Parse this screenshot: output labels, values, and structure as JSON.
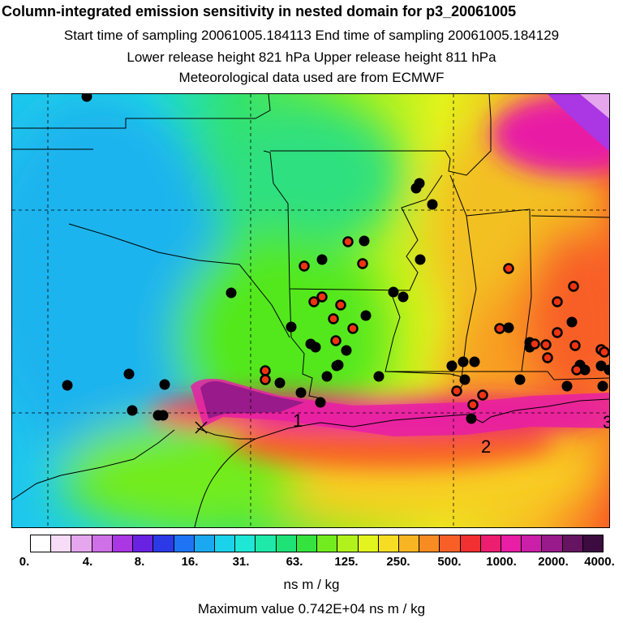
{
  "header": {
    "title": "Column-integrated emission sensitivity in nested domain for p3_20061005",
    "sampling_line": "Start time of sampling 20061005.184113     End time of sampling 20061005.184129",
    "release_line": "Lower release height  821 hPa      Upper release height  811 hPa",
    "met_line": "Meteorological data used are from ECMWF"
  },
  "map": {
    "point_labels": [
      "1",
      "2",
      "3"
    ]
  },
  "colorbar": {
    "ticks": [
      "0.",
      "4.",
      "8.",
      "16.",
      "31.",
      "63.",
      "125.",
      "250.",
      "500.",
      "1000.",
      "2000.",
      "4000."
    ],
    "colors": [
      "#ffffff",
      "#f6dcf6",
      "#e6a6ee",
      "#cf70e8",
      "#aa36e4",
      "#6a22e2",
      "#2b3ae6",
      "#1e74f4",
      "#1aa9f0",
      "#1ad3ea",
      "#1ee8d5",
      "#1ee9a8",
      "#1fe277",
      "#34e33e",
      "#72ec1e",
      "#b1f21c",
      "#e2f31d",
      "#f6dd23",
      "#f8b523",
      "#f98b23",
      "#f85f27",
      "#f22f31",
      "#ec1e70",
      "#e81ea4",
      "#cb1ea9",
      "#991a8a",
      "#661462",
      "#3c0b40"
    ],
    "units_label": "ns m / kg",
    "max_value_text": "Maximum value  0.742E+04 ns m / kg"
  },
  "colors": {
    "marker_black": "#000000",
    "marker_red": "#ee3311"
  }
}
